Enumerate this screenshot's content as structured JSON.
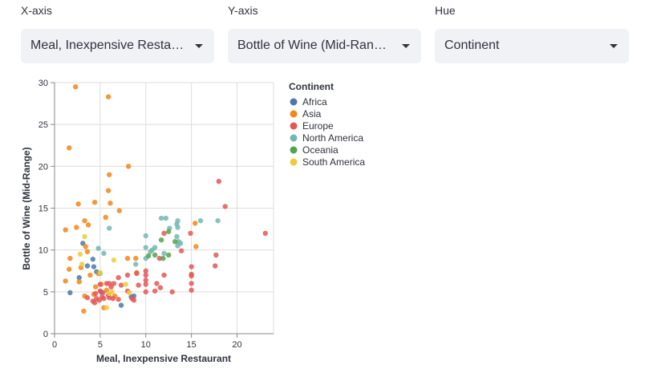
{
  "controls": {
    "x": {
      "label": "X-axis",
      "value": "Meal, Inexpensive Resta…",
      "icon": "chevron-down-icon"
    },
    "y": {
      "label": "Y-axis",
      "value": "Bottle of Wine (Mid-Ran…",
      "icon": "chevron-down-icon"
    },
    "hue": {
      "label": "Hue",
      "value": "Continent",
      "icon": "chevron-down-icon"
    }
  },
  "chart_data": {
    "type": "scatter",
    "xlabel": "Meal, Inexpensive Restaurant",
    "ylabel": "Bottle of Wine (Mid-Range)",
    "xlim": [
      0,
      24
    ],
    "ylim": [
      0,
      30
    ],
    "xticks": [
      0,
      5,
      10,
      15,
      20
    ],
    "yticks": [
      0,
      5,
      10,
      15,
      20,
      25,
      30
    ],
    "grid": true,
    "legend_title": "Continent",
    "legend_position": "right",
    "series": [
      {
        "name": "Africa",
        "color": "#4c78a8",
        "points": [
          [
            1.7,
            4.9
          ],
          [
            3.1,
            10.8
          ],
          [
            3.6,
            8.1
          ],
          [
            4.2,
            8.9
          ],
          [
            4.3,
            8.0
          ],
          [
            4.6,
            7.4
          ],
          [
            5.1,
            5.0
          ],
          [
            7.3,
            3.4
          ],
          [
            8.4,
            4.4
          ],
          [
            8.7,
            4.5
          ],
          [
            2.7,
            6.7
          ]
        ]
      },
      {
        "name": "Asia",
        "color": "#f58518",
        "points": [
          [
            2.3,
            29.5
          ],
          [
            5.9,
            28.3
          ],
          [
            1.6,
            22.2
          ],
          [
            8.1,
            20.0
          ],
          [
            6.0,
            19.0
          ],
          [
            5.9,
            17.1
          ],
          [
            2.6,
            15.5
          ],
          [
            4.4,
            15.7
          ],
          [
            6.1,
            15.6
          ],
          [
            7.1,
            14.7
          ],
          [
            5.6,
            13.9
          ],
          [
            3.3,
            13.5
          ],
          [
            3.7,
            13.0
          ],
          [
            1.2,
            12.4
          ],
          [
            2.4,
            12.7
          ],
          [
            15.4,
            13.2
          ],
          [
            3.4,
            10.4
          ],
          [
            3.6,
            9.8
          ],
          [
            1.7,
            9.0
          ],
          [
            8.0,
            9.0
          ],
          [
            8.9,
            9.0
          ],
          [
            4.8,
            7.2
          ],
          [
            1.6,
            7.7
          ],
          [
            2.9,
            7.9
          ],
          [
            3.9,
            7.0
          ],
          [
            1.2,
            6.3
          ],
          [
            2.7,
            6.2
          ],
          [
            4.5,
            5.6
          ],
          [
            5.1,
            5.9
          ],
          [
            5.7,
            5.2
          ],
          [
            6.6,
            4.5
          ],
          [
            4.3,
            4.7
          ],
          [
            3.3,
            4.5
          ],
          [
            5.4,
            3.1
          ],
          [
            3.2,
            2.7
          ],
          [
            9.0,
            7.3
          ],
          [
            15.5,
            10.4
          ]
        ]
      },
      {
        "name": "Europe",
        "color": "#e45756",
        "points": [
          [
            18.0,
            18.2
          ],
          [
            18.7,
            15.2
          ],
          [
            23.1,
            12.0
          ],
          [
            14.9,
            12.0
          ],
          [
            12.0,
            12.0
          ],
          [
            17.7,
            9.4
          ],
          [
            11.5,
            9.0
          ],
          [
            17.6,
            8.1
          ],
          [
            15.0,
            8.0
          ],
          [
            15.0,
            7.1
          ],
          [
            15.0,
            6.9
          ],
          [
            15.0,
            6.0
          ],
          [
            15.0,
            5.2
          ],
          [
            10.0,
            7.5
          ],
          [
            10.0,
            7.0
          ],
          [
            10.0,
            6.4
          ],
          [
            10.0,
            5.9
          ],
          [
            10.0,
            5.0
          ],
          [
            9.0,
            7.2
          ],
          [
            8.0,
            7.0
          ],
          [
            7.0,
            6.7
          ],
          [
            6.5,
            6.0
          ],
          [
            6.0,
            6.0
          ],
          [
            5.7,
            6.0
          ],
          [
            5.0,
            5.9
          ],
          [
            5.0,
            5.1
          ],
          [
            4.5,
            4.8
          ],
          [
            4.6,
            4.2
          ],
          [
            4.2,
            3.9
          ],
          [
            4.4,
            3.7
          ],
          [
            3.6,
            4.3
          ],
          [
            5.3,
            4.9
          ],
          [
            5.9,
            4.6
          ],
          [
            6.0,
            4.3
          ],
          [
            6.4,
            4.2
          ],
          [
            7.0,
            4.1
          ],
          [
            7.3,
            5.8
          ],
          [
            8.0,
            5.1
          ],
          [
            8.5,
            4.2
          ],
          [
            8.7,
            4.0
          ],
          [
            11.0,
            5.1
          ],
          [
            11.6,
            5.5
          ],
          [
            12.9,
            5.0
          ],
          [
            12.0,
            7.0
          ],
          [
            11.2,
            6.0
          ],
          [
            9.2,
            5.8
          ],
          [
            6.2,
            5.6
          ],
          [
            5.2,
            4.4
          ],
          [
            4.9,
            4.0
          ],
          [
            13.9,
            9.9
          ],
          [
            5.4,
            4.2
          ]
        ]
      },
      {
        "name": "North America",
        "color": "#72b7b2",
        "points": [
          [
            11.7,
            13.8
          ],
          [
            12.2,
            13.8
          ],
          [
            13.5,
            13.5
          ],
          [
            13.4,
            13.1
          ],
          [
            13.5,
            12.7
          ],
          [
            16.0,
            13.5
          ],
          [
            17.9,
            13.5
          ],
          [
            12.6,
            12.6
          ],
          [
            6.0,
            12.6
          ],
          [
            10.0,
            11.7
          ],
          [
            13.4,
            11.6
          ],
          [
            13.6,
            11.0
          ],
          [
            13.8,
            10.8
          ],
          [
            10.0,
            10.3
          ],
          [
            11.0,
            10.3
          ],
          [
            4.8,
            10.2
          ],
          [
            10.5,
            9.8
          ],
          [
            12.0,
            9.6
          ],
          [
            5.4,
            9.6
          ],
          [
            10.0,
            9.0
          ],
          [
            8.9,
            8.3
          ],
          [
            5.0,
            7.2
          ],
          [
            13.5,
            10.5
          ],
          [
            10.7,
            10.0
          ]
        ]
      },
      {
        "name": "Oceania",
        "color": "#54a24b",
        "points": [
          [
            12.5,
            12.2
          ],
          [
            11.7,
            11.2
          ],
          [
            13.2,
            11.0
          ],
          [
            11.0,
            9.4
          ],
          [
            12.5,
            9.4
          ],
          [
            11.9,
            9.0
          ],
          [
            10.3,
            9.3
          ]
        ]
      },
      {
        "name": "South America",
        "color": "#eeca3b",
        "points": [
          [
            3.3,
            11.6
          ],
          [
            2.8,
            9.5
          ],
          [
            6.5,
            8.8
          ],
          [
            3.0,
            8.3
          ],
          [
            5.0,
            7.3
          ],
          [
            6.3,
            5.0
          ],
          [
            7.8,
            5.9
          ],
          [
            5.7,
            3.1
          ],
          [
            8.2,
            4.9
          ],
          [
            6.0,
            4.8
          ]
        ]
      }
    ]
  }
}
